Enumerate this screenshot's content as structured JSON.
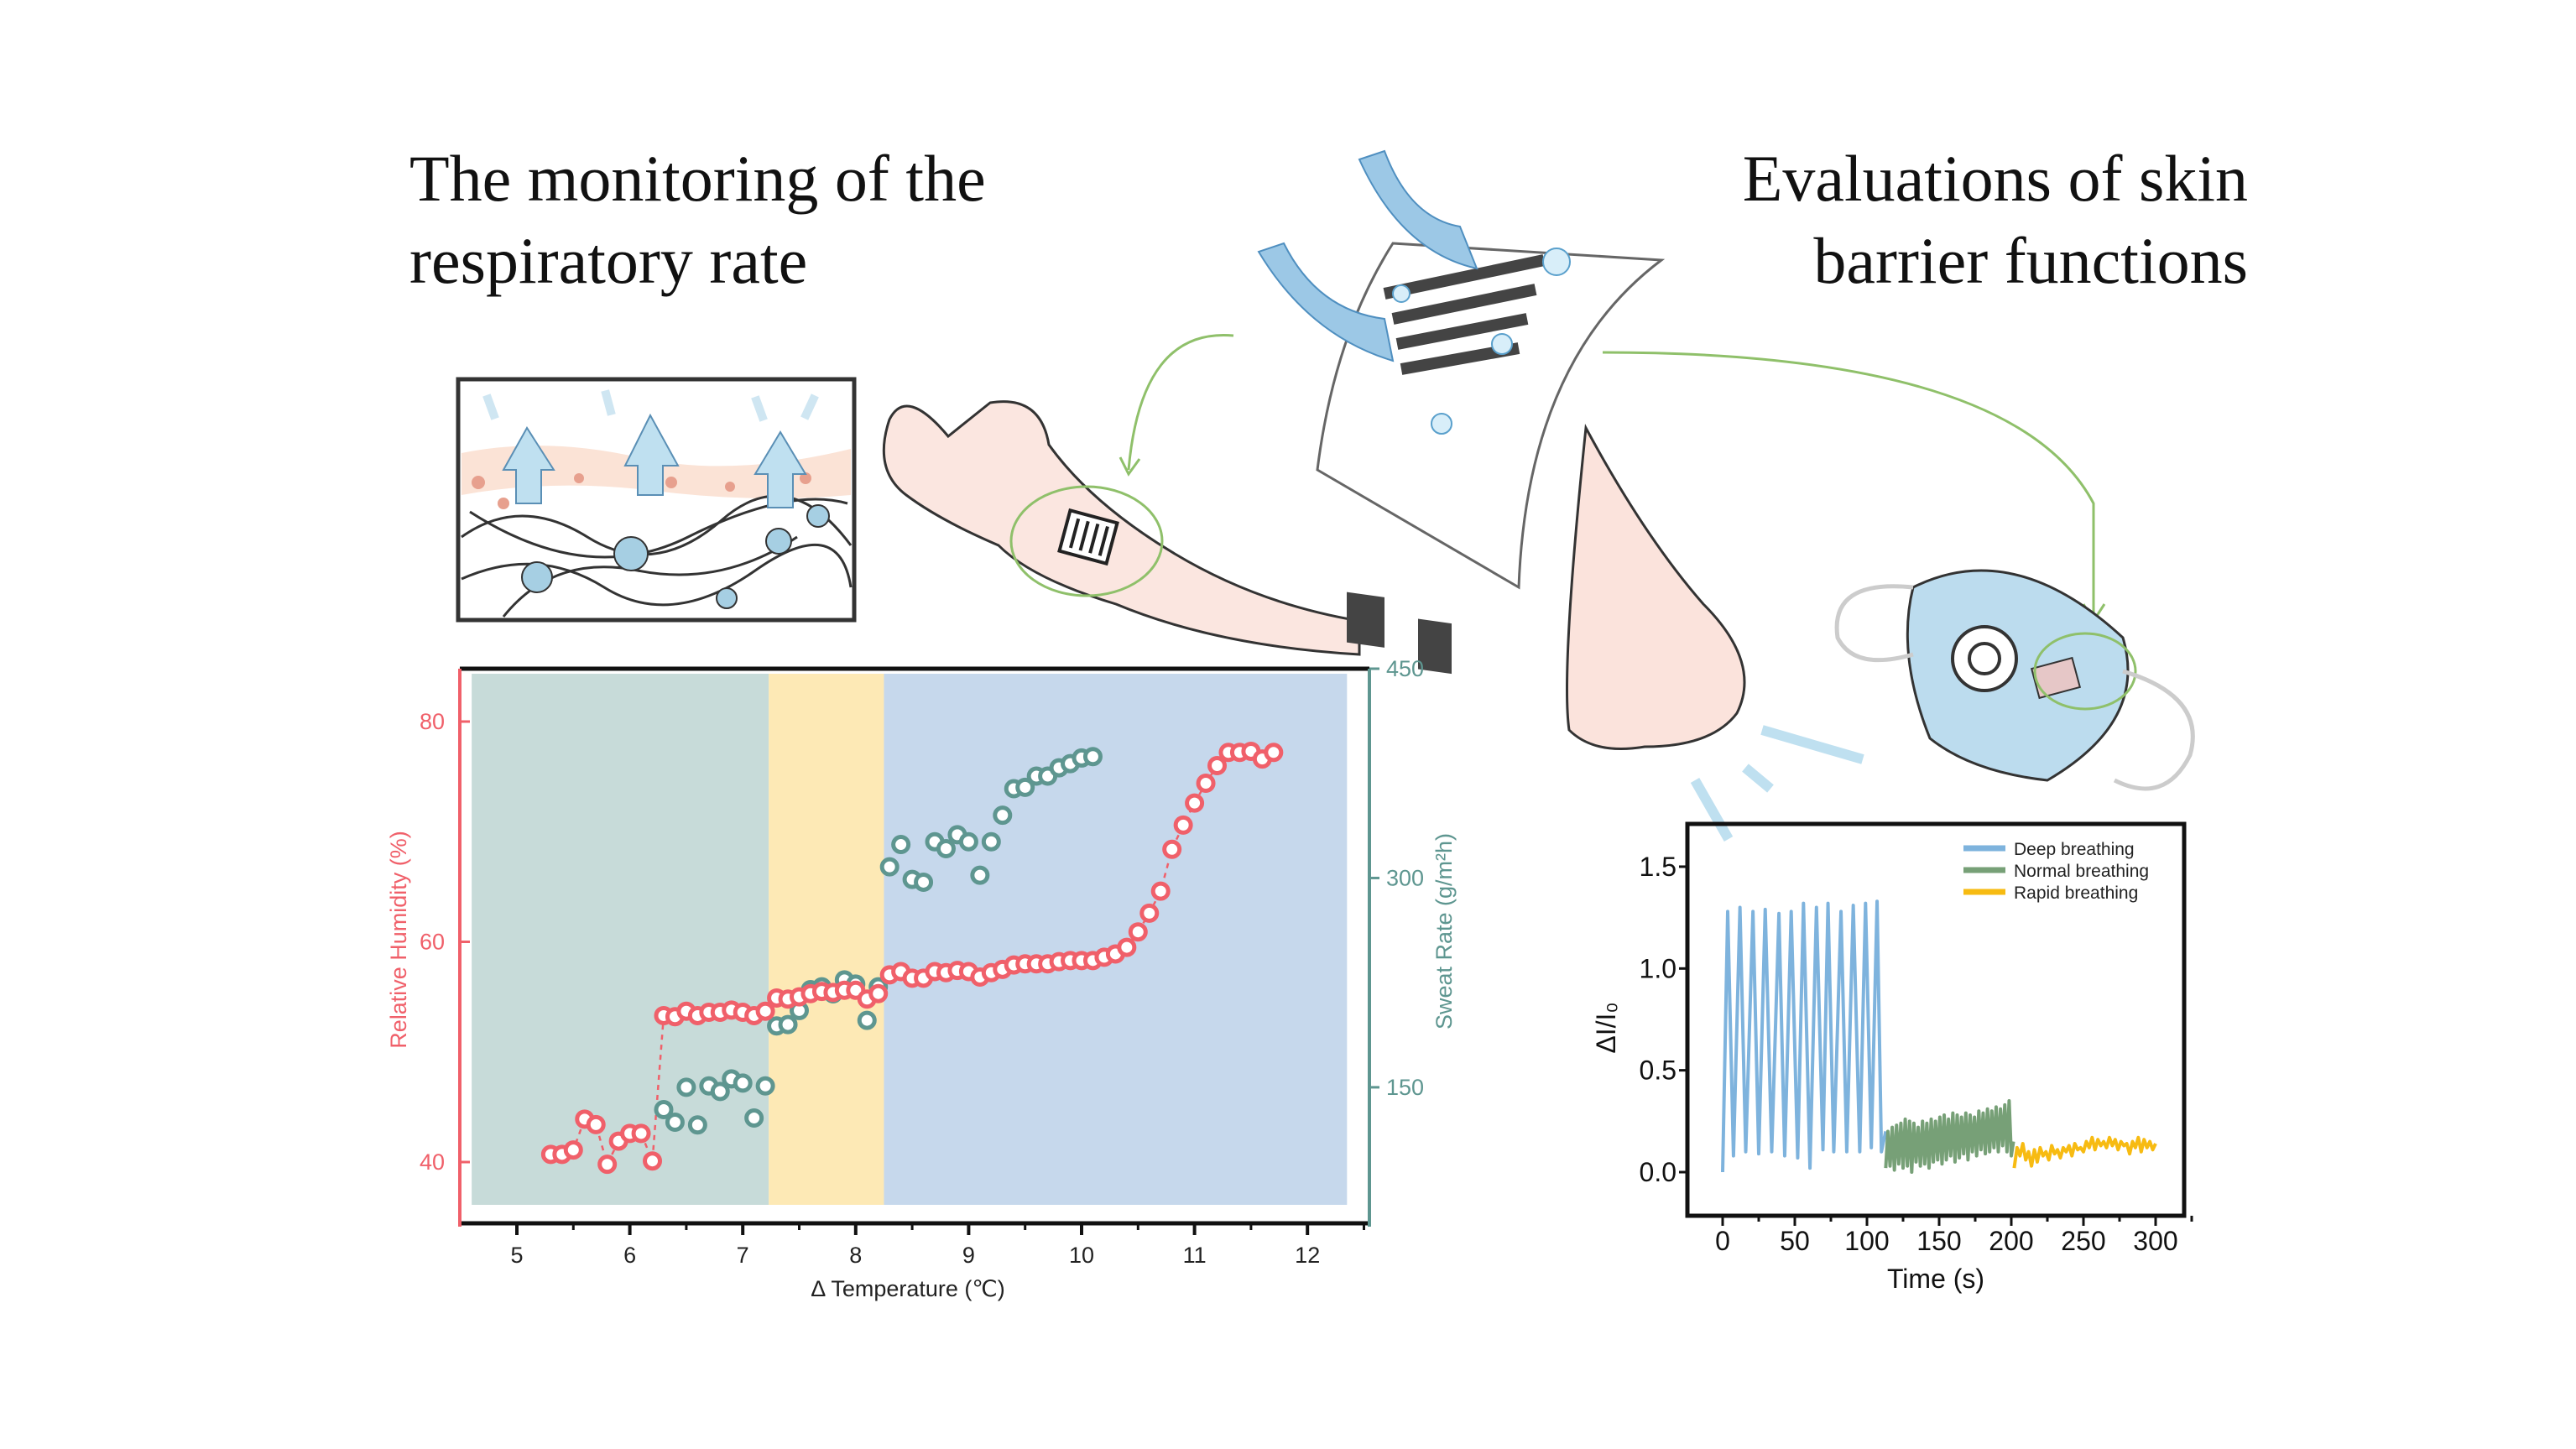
{
  "titles": {
    "left": [
      "The monitoring of the",
      "respiratory rate"
    ],
    "right": [
      "Evaluations of skin",
      "barrier functions"
    ]
  },
  "colors": {
    "humidity": "#f0606a",
    "sweat": "#5e9690",
    "zone_rest": "#c7dbd9",
    "zone_stand": "#fde9b5",
    "zone_exercise": "#c6d8ec",
    "deep": "#7eb3dd",
    "normal": "#77a077",
    "rapid": "#f7bb12"
  },
  "chart_data": [
    {
      "type": "scatter",
      "title": "",
      "xlabel": "Δ Temperature (℃)",
      "ylabel_left": "Relative Humidity (%)",
      "ylabel_right": "Sweat Rate (g/m²h)",
      "xlim": [
        4.5,
        12.5
      ],
      "ylim_left": [
        35,
        85
      ],
      "ylim_right": [
        75,
        450
      ],
      "x_ticks": [
        "5",
        "6",
        "7",
        "8",
        "9",
        "10",
        "11",
        "12"
      ],
      "y_ticks_left": [
        "40",
        "60",
        "80"
      ],
      "y_ticks_right": [
        "150",
        "300",
        "450"
      ],
      "background_zones": [
        {
          "from": 4.6,
          "to": 7.23,
          "color": "#c7dbd9"
        },
        {
          "from": 7.23,
          "to": 8.25,
          "color": "#fde9b5"
        },
        {
          "from": 8.25,
          "to": 12.35,
          "color": "#c6d8ec"
        }
      ],
      "series": [
        {
          "axis": "left",
          "x": [
            5.3,
            5.4,
            5.5,
            5.6,
            5.7,
            5.8,
            5.9,
            6.0,
            6.1,
            6.2,
            6.3,
            6.4,
            6.5,
            6.6,
            6.7,
            6.8,
            6.9,
            7.0,
            7.1,
            7.2,
            7.3,
            7.4,
            7.5,
            7.6,
            7.7,
            7.8,
            7.9,
            8.0,
            8.1,
            8.2,
            8.3,
            8.4,
            8.5,
            8.6,
            8.7,
            8.8,
            8.9,
            9.0,
            9.1,
            9.2,
            9.3,
            9.4,
            9.5,
            9.6,
            9.7,
            9.8,
            9.9,
            10.0,
            10.1,
            10.2,
            10.3,
            10.4,
            10.5,
            10.6,
            10.7,
            10.8,
            10.9,
            11.0,
            11.1,
            11.2,
            11.3,
            11.4,
            11.5,
            11.6,
            11.7
          ],
          "y": [
            40.7,
            40.7,
            41.1,
            43.9,
            43.4,
            39.8,
            41.9,
            42.6,
            42.6,
            40.1,
            53.3,
            53.2,
            53.7,
            53.3,
            53.6,
            53.6,
            53.8,
            53.6,
            53.3,
            53.7,
            54.9,
            54.8,
            55.0,
            55.3,
            55.5,
            55.4,
            55.6,
            55.6,
            54.8,
            55.3,
            57.0,
            57.3,
            56.7,
            56.7,
            57.3,
            57.2,
            57.4,
            57.3,
            56.8,
            57.2,
            57.5,
            57.9,
            58.0,
            58.0,
            58.0,
            58.2,
            58.3,
            58.3,
            58.3,
            58.6,
            58.9,
            59.5,
            60.9,
            62.6,
            64.6,
            68.4,
            70.6,
            72.6,
            74.4,
            76.0,
            77.2,
            77.2,
            77.3,
            76.6,
            77.2
          ]
        },
        {
          "axis": "right",
          "x": [
            6.3,
            6.4,
            6.5,
            6.6,
            6.7,
            6.8,
            6.9,
            7.0,
            7.1,
            7.2,
            7.3,
            7.4,
            7.5,
            7.6,
            7.7,
            7.8,
            7.9,
            8.0,
            8.1,
            8.2,
            8.3,
            8.4,
            8.5,
            8.6,
            8.7,
            8.8,
            8.9,
            9.0,
            9.1,
            9.2,
            9.3,
            9.4,
            9.5,
            9.6,
            9.7,
            9.8,
            9.9,
            10.0,
            10.1
          ],
          "y": [
            134,
            125,
            150,
            123,
            151,
            147,
            156,
            153,
            128,
            151,
            194,
            195,
            205,
            220,
            222,
            217,
            227,
            224,
            198,
            222,
            308,
            324,
            299,
            297,
            326,
            321,
            331,
            326,
            302,
            326,
            345,
            364,
            365,
            373,
            373,
            379,
            382,
            386,
            387
          ]
        }
      ]
    },
    {
      "type": "line",
      "title": "",
      "xlabel": "Time (s)",
      "ylabel": "ΔI/I₀",
      "xlim": [
        -20,
        320
      ],
      "ylim": [
        -0.2,
        1.7
      ],
      "x_ticks": [
        "0",
        "50",
        "100",
        "150",
        "200",
        "250",
        "300"
      ],
      "y_ticks": [
        "0.0",
        "0.5",
        "1.0",
        "1.5"
      ],
      "legend": "top-right",
      "series": [
        {
          "name": "Deep breathing",
          "color": "#7eb3dd",
          "x": [
            0,
            3.5,
            7.5,
            12,
            16,
            21,
            25,
            29.5,
            34,
            39,
            43,
            47.5,
            52,
            56,
            60.5,
            65,
            69.5,
            73,
            77,
            82,
            86,
            90.5,
            95,
            99,
            103,
            107,
            110,
            113
          ],
          "y": [
            0,
            1.28,
            0.08,
            1.3,
            0.1,
            1.28,
            0.09,
            1.29,
            0.1,
            1.27,
            0.08,
            1.28,
            0.07,
            1.32,
            0.02,
            1.3,
            0.11,
            1.32,
            0.1,
            1.28,
            0.1,
            1.31,
            0.1,
            1.32,
            0.12,
            1.33,
            0.1,
            0.2
          ]
        },
        {
          "name": "Normal breathing",
          "color": "#77a077",
          "x_start": 113,
          "x_step": 1.5,
          "y": [
            0.02,
            0.2,
            0.03,
            0.22,
            0.01,
            0.23,
            0.04,
            0.24,
            0.02,
            0.26,
            0.03,
            0.25,
            0.0,
            0.24,
            0.05,
            0.22,
            0.03,
            0.25,
            0.04,
            0.24,
            0.02,
            0.26,
            0.05,
            0.25,
            0.06,
            0.27,
            0.04,
            0.28,
            0.06,
            0.26,
            0.08,
            0.29,
            0.05,
            0.28,
            0.07,
            0.27,
            0.09,
            0.29,
            0.06,
            0.28,
            0.1,
            0.27,
            0.08,
            0.3,
            0.11,
            0.29,
            0.09,
            0.31,
            0.1,
            0.3,
            0.12,
            0.32,
            0.1,
            0.31,
            0.13,
            0.33,
            0.1,
            0.35,
            0.08,
            0.15
          ]
        },
        {
          "name": "Rapid breathing",
          "color": "#f7bb12",
          "x_start": 202,
          "x_step": 2,
          "y": [
            0.02,
            0.12,
            0.08,
            0.14,
            0.06,
            0.1,
            0.03,
            0.11,
            0.05,
            0.12,
            0.08,
            0.1,
            0.06,
            0.13,
            0.09,
            0.11,
            0.07,
            0.12,
            0.1,
            0.13,
            0.08,
            0.14,
            0.11,
            0.12,
            0.1,
            0.15,
            0.12,
            0.17,
            0.11,
            0.16,
            0.13,
            0.15,
            0.12,
            0.17,
            0.13,
            0.16,
            0.11,
            0.15,
            0.13,
            0.14,
            0.09,
            0.15,
            0.12,
            0.17,
            0.1,
            0.16,
            0.12,
            0.15,
            0.11,
            0.14
          ]
        }
      ]
    }
  ]
}
